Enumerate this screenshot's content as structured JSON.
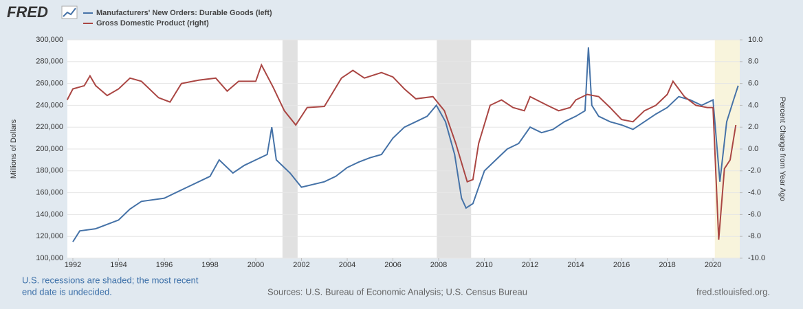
{
  "chart_data": {
    "type": "line",
    "logo": "FRED",
    "ylabel": "Millions of Dollars",
    "y2label": "Percent Change from Year Ago",
    "note": [
      "U.S. recessions are shaded; the most recent",
      "end date is undecided."
    ],
    "source": "Sources: U.S. Bureau of Economic Analysis; U.S. Census Bureau",
    "site": "fred.stlouisfed.org.",
    "xlim": [
      1991.76,
      2021.17
    ],
    "xticks": [
      1992,
      1994,
      1996,
      1998,
      2000,
      2002,
      2004,
      2006,
      2008,
      2010,
      2012,
      2014,
      2016,
      2018,
      2020
    ],
    "ylim": [
      100000,
      300000
    ],
    "yticks": [
      {
        "value": 100000,
        "label": "100,000"
      },
      {
        "value": 120000,
        "label": "120,000"
      },
      {
        "value": 140000,
        "label": "140,000"
      },
      {
        "value": 160000,
        "label": "160,000"
      },
      {
        "value": 180000,
        "label": "180,000"
      },
      {
        "value": 200000,
        "label": "200,000"
      },
      {
        "value": 220000,
        "label": "220,000"
      },
      {
        "value": 240000,
        "label": "240,000"
      },
      {
        "value": 260000,
        "label": "260,000"
      },
      {
        "value": 280000,
        "label": "280,000"
      },
      {
        "value": 300000,
        "label": "300,000"
      }
    ],
    "y2lim": [
      -10,
      10
    ],
    "y2ticks": [
      {
        "value": -10,
        "label": "-10.0"
      },
      {
        "value": -8,
        "label": "-8.0"
      },
      {
        "value": -6,
        "label": "-6.0"
      },
      {
        "value": -4,
        "label": "-4.0"
      },
      {
        "value": -2,
        "label": "-2.0"
      },
      {
        "value": 0,
        "label": "0.0"
      },
      {
        "value": 2,
        "label": "2.0"
      },
      {
        "value": 4,
        "label": "4.0"
      },
      {
        "value": 6,
        "label": "6.0"
      },
      {
        "value": 8,
        "label": "8.0"
      },
      {
        "value": 10,
        "label": "10.0"
      }
    ],
    "grid": true,
    "shading": [
      {
        "x": [
          2001.17,
          2001.83
        ],
        "color": "#e1e1e1"
      },
      {
        "x": [
          2007.92,
          2009.42
        ],
        "color": "#e1e1e1"
      },
      {
        "x": [
          2020.08,
          2021.17
        ],
        "color": "#f8f4dc"
      }
    ],
    "series": [
      {
        "name": "Manufacturers' New Orders: Durable Goods (left)",
        "color": "#4572a7",
        "axis": "y",
        "x": [
          1992.0,
          1992.3,
          1993.0,
          1994.0,
          1994.5,
          1995.0,
          1996.0,
          1997.0,
          1998.0,
          1998.4,
          1999.0,
          1999.5,
          2000.0,
          2000.5,
          2000.7,
          2000.9,
          2001.5,
          2002.0,
          2003.0,
          2003.5,
          2004.0,
          2004.5,
          2005.0,
          2005.5,
          2006.0,
          2006.5,
          2007.0,
          2007.5,
          2007.9,
          2008.3,
          2008.7,
          2009.0,
          2009.2,
          2009.5,
          2010.0,
          2010.5,
          2011.0,
          2011.5,
          2012.0,
          2012.5,
          2013.0,
          2013.5,
          2014.0,
          2014.4,
          2014.55,
          2014.7,
          2015.0,
          2015.5,
          2016.0,
          2016.5,
          2017.0,
          2017.5,
          2018.0,
          2018.5,
          2019.0,
          2019.5,
          2020.0,
          2020.3,
          2020.6,
          2020.9,
          2021.1
        ],
        "values": [
          115000,
          125000,
          127000,
          135000,
          145000,
          152000,
          155000,
          165000,
          175000,
          190000,
          178000,
          185000,
          190000,
          195000,
          220000,
          190000,
          178000,
          165000,
          170000,
          175000,
          183000,
          188000,
          192000,
          195000,
          210000,
          220000,
          225000,
          230000,
          240000,
          225000,
          195000,
          155000,
          146000,
          150000,
          180000,
          190000,
          200000,
          205000,
          220000,
          215000,
          218000,
          225000,
          230000,
          235000,
          293000,
          240000,
          230000,
          225000,
          222000,
          218000,
          225000,
          232000,
          238000,
          248000,
          245000,
          240000,
          245000,
          170000,
          225000,
          245000,
          258000
        ]
      },
      {
        "name": "Gross Domestic Product (right)",
        "color": "#aa4643",
        "axis": "y2",
        "x": [
          1991.75,
          1992.0,
          1992.5,
          1992.75,
          1993.0,
          1993.5,
          1994.0,
          1994.5,
          1995.0,
          1995.75,
          1996.25,
          1996.75,
          1997.5,
          1998.25,
          1998.75,
          1999.25,
          2000.0,
          2000.25,
          2000.75,
          2001.25,
          2001.75,
          2002.25,
          2003.0,
          2003.75,
          2004.25,
          2004.75,
          2005.5,
          2006.0,
          2006.5,
          2007.0,
          2007.75,
          2008.25,
          2008.75,
          2009.25,
          2009.5,
          2009.75,
          2010.25,
          2010.75,
          2011.25,
          2011.75,
          2012.0,
          2012.75,
          2013.25,
          2013.75,
          2014.0,
          2014.5,
          2015.0,
          2015.5,
          2016.0,
          2016.5,
          2017.0,
          2017.5,
          2018.0,
          2018.25,
          2018.75,
          2019.25,
          2019.75,
          2020.0,
          2020.25,
          2020.5,
          2020.75,
          2021.0
        ],
        "values": [
          4.5,
          5.5,
          5.8,
          6.7,
          5.8,
          4.9,
          5.5,
          6.5,
          6.2,
          4.7,
          4.3,
          6.0,
          6.3,
          6.5,
          5.3,
          6.2,
          6.2,
          7.7,
          5.7,
          3.5,
          2.2,
          3.8,
          3.9,
          6.5,
          7.2,
          6.5,
          7.0,
          6.6,
          5.5,
          4.6,
          4.8,
          3.5,
          0.5,
          -3.0,
          -2.8,
          0.5,
          4.0,
          4.5,
          3.8,
          3.5,
          4.8,
          4.0,
          3.5,
          3.8,
          4.5,
          5.0,
          4.8,
          3.8,
          2.7,
          2.5,
          3.5,
          4.0,
          5.0,
          6.2,
          4.8,
          4.0,
          3.8,
          3.8,
          -8.3,
          -1.8,
          -1.0,
          2.2
        ]
      }
    ]
  }
}
